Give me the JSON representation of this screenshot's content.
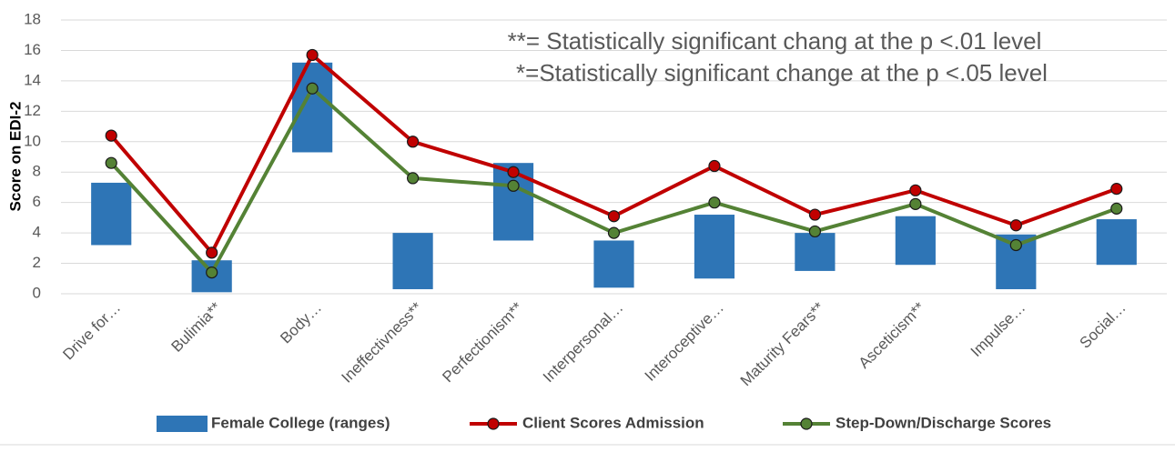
{
  "chart_data": {
    "type": "bar",
    "y_label": "Score on EDI-2",
    "annotations": [
      "**= Statistically significant chang at the p <.01 level",
      "*=Statistically significant change at the p <.05 level"
    ],
    "categories": [
      "Drive for…",
      "Bulimia**",
      "Body…",
      "Ineffectivness**",
      "Perfectionism**",
      "Interpersonal…",
      "Interoceptive…",
      "Maturity Fears**",
      "Asceticism**",
      "Impulse…",
      "Social…"
    ],
    "series": [
      {
        "name": "Female College (ranges)",
        "type": "range",
        "color": "#2e75b6",
        "low": [
          3.2,
          0.1,
          9.3,
          0.3,
          3.5,
          0.4,
          1.0,
          1.5,
          1.9,
          0.3,
          1.9
        ],
        "high": [
          7.3,
          2.2,
          15.2,
          4.0,
          8.6,
          3.5,
          5.2,
          4.0,
          5.1,
          3.9,
          4.9
        ]
      },
      {
        "name": "Client Scores Admission",
        "type": "line",
        "color": "#c00000",
        "values": [
          10.4,
          2.7,
          15.7,
          10.0,
          8.0,
          5.1,
          8.4,
          5.2,
          6.8,
          4.5,
          6.9
        ]
      },
      {
        "name": "Step-Down/Discharge Scores",
        "type": "line",
        "color": "#548235",
        "values": [
          8.6,
          1.4,
          13.5,
          7.6,
          7.1,
          4.0,
          6.0,
          4.1,
          5.9,
          3.2,
          5.6
        ]
      }
    ],
    "ylim": [
      0,
      18
    ],
    "yticks": [
      0,
      2,
      4,
      6,
      8,
      10,
      12,
      14,
      16,
      18
    ],
    "grid": true,
    "legend": "bottom"
  }
}
